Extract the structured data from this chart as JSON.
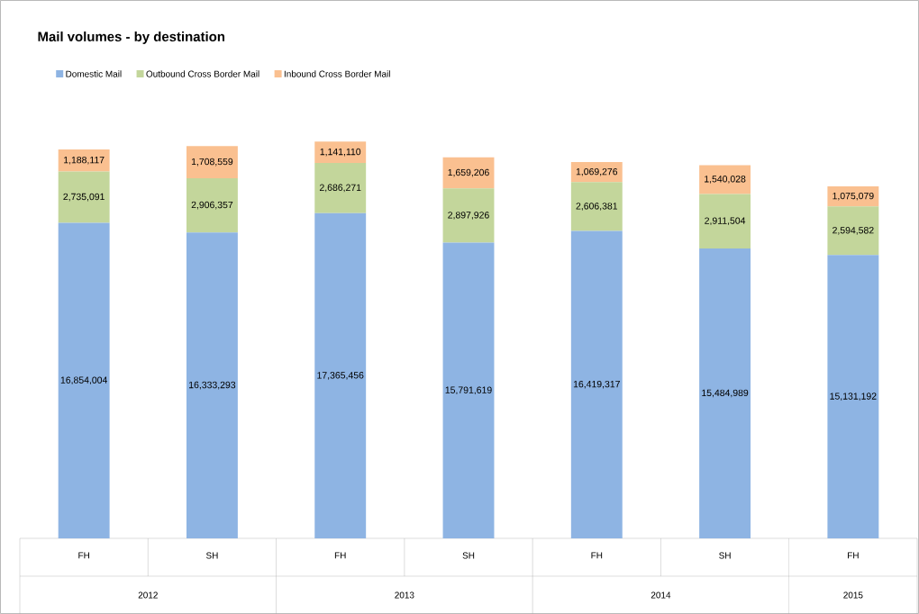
{
  "chart_data": {
    "type": "bar",
    "title": "Mail volumes - by destination",
    "categories": [
      "FH",
      "SH",
      "FH",
      "SH",
      "FH",
      "SH",
      "FH"
    ],
    "annotations": [
      "2012",
      "2013",
      "2014",
      "2015"
    ],
    "stacked": true,
    "legend": "top left",
    "series": [
      {
        "name": "Domestic Mail",
        "color": "#8eb4e3",
        "values": [
          16854004,
          16333293,
          17365456,
          15791619,
          16419317,
          15484989,
          15131192
        ],
        "value_labels": [
          "16,854,004",
          "16,333,293",
          "17,365,456",
          "15,791,619",
          "16,419,317",
          "15,484,989",
          "15,131,192"
        ]
      },
      {
        "name": "Outbound Cross Border Mail",
        "color": "#c3d69b",
        "values": [
          2735091,
          2906357,
          2686271,
          2897926,
          2606381,
          2911504,
          2594582
        ],
        "value_labels": [
          "2,735,091",
          "2,906,357",
          "2,686,271",
          "2,897,926",
          "2,606,381",
          "2,911,504",
          "2,594,582"
        ]
      },
      {
        "name": "Inbound Cross Border Mail",
        "color": "#fac090",
        "values": [
          1188117,
          1708559,
          1141110,
          1659206,
          1069276,
          1540028,
          1075079
        ],
        "value_labels": [
          "1,188,117",
          "1,708,559",
          "1,141,110",
          "1,659,206",
          "1,069,276",
          "1,540,028",
          "1,075,079"
        ]
      }
    ]
  }
}
